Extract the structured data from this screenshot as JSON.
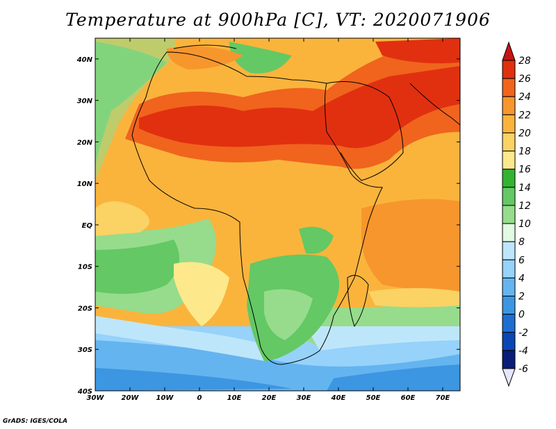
{
  "title": "Temperature at 900hPa [C], VT: 2020071906",
  "credit": "GrADS: IGES/COLA",
  "map": {
    "lon_labels": [
      "30W",
      "20W",
      "10W",
      "0",
      "10E",
      "20E",
      "30E",
      "40E",
      "50E",
      "60E",
      "70E"
    ],
    "lat_labels": [
      "40N",
      "30N",
      "20N",
      "10N",
      "EQ",
      "10S",
      "20S",
      "30S",
      "40S"
    ],
    "lon_range": [
      -30,
      75
    ],
    "lat_range": [
      -40,
      45
    ]
  },
  "colorbar": {
    "levels": [
      "28",
      "26",
      "24",
      "22",
      "20",
      "18",
      "16",
      "14",
      "12",
      "10",
      "8",
      "6",
      "4",
      "2",
      "0",
      "-2",
      "-4",
      "-6"
    ],
    "colors": [
      "#c8140f",
      "#e1300f",
      "#f0641e",
      "#f7962d",
      "#fab43c",
      "#fbd264",
      "#fde98c",
      "#32b432",
      "#64c864",
      "#96dc8c",
      "#e1fae1",
      "#bee6fa",
      "#96d2fa",
      "#64b4f0",
      "#3c96e1",
      "#1e6ed2",
      "#0a46b4",
      "#0a1e78"
    ],
    "top_arrow_color": "#c8140f",
    "bottom_arrow_color": "#e6e6fa"
  }
}
